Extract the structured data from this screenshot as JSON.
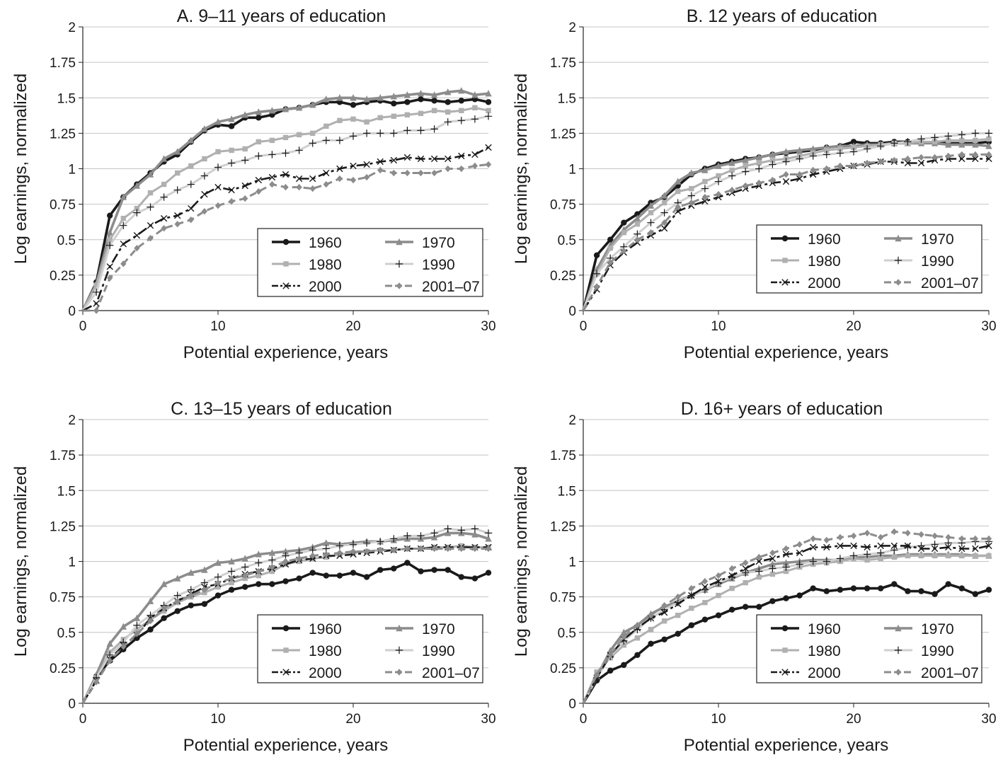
{
  "chart_data": [
    {
      "type": "line",
      "title": "A. 9–11 years of education",
      "xlabel": "Potential experience, years",
      "ylabel": "Log earnings, normalized",
      "xlim": [
        0,
        30
      ],
      "ylim": [
        0,
        2
      ],
      "xticks": [
        "0",
        "10",
        "20",
        "30"
      ],
      "yticks": [
        "0",
        "0.25",
        "0.5",
        "0.75",
        "1",
        "1.25",
        "1.5",
        "1.75",
        "2"
      ],
      "grid": "horizontal",
      "legend_position": "bottom-right",
      "x": [
        0,
        1,
        2,
        3,
        4,
        5,
        6,
        7,
        8,
        9,
        10,
        11,
        12,
        13,
        14,
        15,
        16,
        17,
        18,
        19,
        20,
        21,
        22,
        23,
        24,
        25,
        26,
        27,
        28,
        29,
        30
      ],
      "series": [
        {
          "name": "1960",
          "values": [
            0,
            0.2,
            0.67,
            0.8,
            0.89,
            0.97,
            1.05,
            1.1,
            1.19,
            1.27,
            1.31,
            1.3,
            1.36,
            1.36,
            1.38,
            1.42,
            1.43,
            1.45,
            1.47,
            1.47,
            1.45,
            1.47,
            1.48,
            1.46,
            1.47,
            1.49,
            1.48,
            1.47,
            1.48,
            1.49,
            1.47
          ]
        },
        {
          "name": "1970",
          "values": [
            0,
            0.19,
            0.55,
            0.8,
            0.88,
            0.96,
            1.07,
            1.12,
            1.2,
            1.28,
            1.33,
            1.35,
            1.38,
            1.4,
            1.41,
            1.42,
            1.43,
            1.45,
            1.49,
            1.5,
            1.5,
            1.49,
            1.5,
            1.51,
            1.52,
            1.53,
            1.52,
            1.54,
            1.55,
            1.52,
            1.53
          ]
        },
        {
          "name": "1980",
          "values": [
            0,
            0.18,
            0.5,
            0.65,
            0.72,
            0.83,
            0.89,
            0.97,
            1.02,
            1.07,
            1.12,
            1.13,
            1.14,
            1.19,
            1.2,
            1.22,
            1.24,
            1.25,
            1.3,
            1.34,
            1.35,
            1.33,
            1.36,
            1.37,
            1.38,
            1.39,
            1.41,
            1.4,
            1.41,
            1.43,
            1.41
          ]
        },
        {
          "name": "1990",
          "values": [
            0,
            0.13,
            0.46,
            0.6,
            0.69,
            0.73,
            0.8,
            0.85,
            0.89,
            0.95,
            1.01,
            1.04,
            1.06,
            1.09,
            1.1,
            1.11,
            1.13,
            1.18,
            1.2,
            1.2,
            1.23,
            1.25,
            1.25,
            1.25,
            1.27,
            1.27,
            1.28,
            1.33,
            1.34,
            1.35,
            1.37
          ]
        },
        {
          "name": "2000",
          "values": [
            0,
            0.05,
            0.31,
            0.47,
            0.53,
            0.6,
            0.65,
            0.67,
            0.72,
            0.82,
            0.87,
            0.85,
            0.88,
            0.92,
            0.94,
            0.96,
            0.93,
            0.93,
            0.97,
            1.0,
            1.02,
            1.03,
            1.05,
            1.06,
            1.08,
            1.07,
            1.07,
            1.07,
            1.09,
            1.1,
            1.15
          ]
        },
        {
          "name": "2001–07",
          "values": [
            0,
            0.0,
            0.23,
            0.33,
            0.44,
            0.51,
            0.58,
            0.61,
            0.64,
            0.7,
            0.74,
            0.77,
            0.79,
            0.84,
            0.89,
            0.87,
            0.87,
            0.86,
            0.89,
            0.93,
            0.92,
            0.94,
            0.99,
            0.97,
            0.97,
            0.97,
            0.97,
            1.0,
            1.0,
            1.02,
            1.03
          ]
        }
      ]
    },
    {
      "type": "line",
      "title": "B. 12 years of education",
      "xlabel": "Potential experience, years",
      "ylabel": "Log earnings, normalized",
      "xlim": [
        0,
        30
      ],
      "ylim": [
        0,
        2
      ],
      "xticks": [
        "0",
        "10",
        "20",
        "30"
      ],
      "yticks": [
        "0",
        "0.25",
        "0.5",
        "0.75",
        "1",
        "1.25",
        "1.5",
        "1.75",
        "2"
      ],
      "grid": "horizontal",
      "legend_position": "bottom-right",
      "x": [
        0,
        1,
        2,
        3,
        4,
        5,
        6,
        7,
        8,
        9,
        10,
        11,
        12,
        13,
        14,
        15,
        16,
        17,
        18,
        19,
        20,
        21,
        22,
        23,
        24,
        25,
        26,
        27,
        28,
        29,
        30
      ],
      "series": [
        {
          "name": "1960",
          "values": [
            0,
            0.39,
            0.5,
            0.62,
            0.68,
            0.76,
            0.8,
            0.88,
            0.96,
            1.0,
            1.03,
            1.05,
            1.07,
            1.08,
            1.1,
            1.11,
            1.12,
            1.13,
            1.15,
            1.16,
            1.19,
            1.18,
            1.18,
            1.19,
            1.19,
            1.18,
            1.19,
            1.18,
            1.18,
            1.18,
            1.19
          ]
        },
        {
          "name": "1970",
          "values": [
            0,
            0.29,
            0.46,
            0.57,
            0.65,
            0.74,
            0.81,
            0.91,
            0.97,
            0.99,
            1.02,
            1.04,
            1.06,
            1.08,
            1.1,
            1.12,
            1.13,
            1.14,
            1.15,
            1.16,
            1.16,
            1.17,
            1.17,
            1.18,
            1.18,
            1.18,
            1.18,
            1.17,
            1.17,
            1.17,
            1.16
          ]
        },
        {
          "name": "1980",
          "values": [
            0,
            0.26,
            0.44,
            0.55,
            0.61,
            0.69,
            0.76,
            0.84,
            0.86,
            0.91,
            0.95,
            0.99,
            1.02,
            1.04,
            1.06,
            1.07,
            1.09,
            1.11,
            1.13,
            1.14,
            1.15,
            1.16,
            1.17,
            1.18,
            1.18,
            1.19,
            1.19,
            1.2,
            1.2,
            1.2,
            1.21
          ]
        },
        {
          "name": "1990",
          "values": [
            0,
            0.26,
            0.37,
            0.45,
            0.54,
            0.62,
            0.69,
            0.76,
            0.81,
            0.86,
            0.91,
            0.95,
            0.98,
            1.0,
            1.03,
            1.05,
            1.07,
            1.09,
            1.1,
            1.11,
            1.12,
            1.14,
            1.16,
            1.18,
            1.19,
            1.21,
            1.22,
            1.23,
            1.24,
            1.25,
            1.25
          ]
        },
        {
          "name": "2000",
          "values": [
            0,
            0.15,
            0.32,
            0.41,
            0.48,
            0.53,
            0.58,
            0.7,
            0.74,
            0.77,
            0.8,
            0.83,
            0.86,
            0.88,
            0.9,
            0.91,
            0.93,
            0.96,
            0.98,
            1.0,
            1.02,
            1.03,
            1.05,
            1.05,
            1.04,
            1.04,
            1.06,
            1.07,
            1.07,
            1.07,
            1.07
          ]
        },
        {
          "name": "2001–07",
          "values": [
            0,
            0.17,
            0.34,
            0.42,
            0.5,
            0.55,
            0.62,
            0.73,
            0.76,
            0.8,
            0.82,
            0.85,
            0.88,
            0.9,
            0.92,
            0.96,
            0.96,
            0.99,
            1.0,
            1.02,
            1.02,
            1.04,
            1.05,
            1.06,
            1.07,
            1.08,
            1.08,
            1.09,
            1.1,
            1.1,
            1.1
          ]
        }
      ]
    },
    {
      "type": "line",
      "title": "C. 13–15 years of education",
      "xlabel": "Potential experience, years",
      "ylabel": "Log earnings, normalized",
      "xlim": [
        0,
        30
      ],
      "ylim": [
        0,
        2
      ],
      "xticks": [
        "0",
        "10",
        "20",
        "30"
      ],
      "yticks": [
        "0",
        "0.25",
        "0.5",
        "0.75",
        "1",
        "1.25",
        "1.5",
        "1.75",
        "2"
      ],
      "grid": "horizontal",
      "legend_position": "bottom-right",
      "x": [
        0,
        1,
        2,
        3,
        4,
        5,
        6,
        7,
        8,
        9,
        10,
        11,
        12,
        13,
        14,
        15,
        16,
        17,
        18,
        19,
        20,
        21,
        22,
        23,
        24,
        25,
        26,
        27,
        28,
        29,
        30
      ],
      "series": [
        {
          "name": "1960",
          "values": [
            0,
            0.19,
            0.3,
            0.38,
            0.46,
            0.52,
            0.6,
            0.65,
            0.69,
            0.7,
            0.76,
            0.8,
            0.82,
            0.84,
            0.84,
            0.86,
            0.88,
            0.92,
            0.9,
            0.9,
            0.92,
            0.89,
            0.94,
            0.95,
            0.99,
            0.93,
            0.94,
            0.94,
            0.89,
            0.88,
            0.92
          ]
        },
        {
          "name": "1970",
          "values": [
            0,
            0.2,
            0.42,
            0.54,
            0.6,
            0.72,
            0.84,
            0.88,
            0.92,
            0.94,
            0.99,
            1.0,
            1.02,
            1.05,
            1.06,
            1.07,
            1.08,
            1.1,
            1.13,
            1.12,
            1.13,
            1.14,
            1.14,
            1.15,
            1.16,
            1.16,
            1.17,
            1.2,
            1.2,
            1.19,
            1.16
          ]
        },
        {
          "name": "1980",
          "values": [
            0,
            0.18,
            0.36,
            0.45,
            0.52,
            0.59,
            0.65,
            0.71,
            0.75,
            0.78,
            0.82,
            0.85,
            0.88,
            0.9,
            0.93,
            0.98,
            1.0,
            1.02,
            1.03,
            1.05,
            1.06,
            1.07,
            1.08,
            1.08,
            1.09,
            1.09,
            1.1,
            1.1,
            1.11,
            1.1,
            1.1
          ]
        },
        {
          "name": "1990",
          "values": [
            0,
            0.18,
            0.34,
            0.43,
            0.55,
            0.62,
            0.69,
            0.76,
            0.8,
            0.85,
            0.89,
            0.93,
            0.96,
            0.99,
            1.01,
            1.04,
            1.06,
            1.08,
            1.09,
            1.11,
            1.12,
            1.13,
            1.14,
            1.16,
            1.18,
            1.18,
            1.2,
            1.23,
            1.22,
            1.23,
            1.2
          ]
        },
        {
          "name": "2000",
          "values": [
            0,
            0.16,
            0.31,
            0.41,
            0.48,
            0.6,
            0.67,
            0.72,
            0.77,
            0.82,
            0.84,
            0.88,
            0.91,
            0.93,
            0.95,
            0.98,
            1.01,
            1.02,
            1.04,
            1.04,
            1.05,
            1.06,
            1.07,
            1.08,
            1.09,
            1.09,
            1.1,
            1.1,
            1.1,
            1.1,
            1.1
          ]
        },
        {
          "name": "2001–07",
          "values": [
            0,
            0.15,
            0.3,
            0.4,
            0.49,
            0.58,
            0.67,
            0.72,
            0.76,
            0.8,
            0.85,
            0.88,
            0.9,
            0.93,
            0.96,
            1.0,
            1.02,
            1.04,
            1.05,
            1.06,
            1.07,
            1.07,
            1.08,
            1.08,
            1.09,
            1.09,
            1.09,
            1.09,
            1.09,
            1.09,
            1.09
          ]
        }
      ]
    },
    {
      "type": "line",
      "title": "D. 16+ years of education",
      "xlabel": "Potential experience, years",
      "ylabel": "Log earnings, normalized",
      "xlim": [
        0,
        30
      ],
      "ylim": [
        0,
        2
      ],
      "xticks": [
        "0",
        "10",
        "20",
        "30"
      ],
      "yticks": [
        "0",
        "0.25",
        "0.5",
        "0.75",
        "1",
        "1.25",
        "1.5",
        "1.75",
        "2"
      ],
      "grid": "horizontal",
      "legend_position": "bottom-right",
      "x": [
        0,
        1,
        2,
        3,
        4,
        5,
        6,
        7,
        8,
        9,
        10,
        11,
        12,
        13,
        14,
        15,
        16,
        17,
        18,
        19,
        20,
        21,
        22,
        23,
        24,
        25,
        26,
        27,
        28,
        29,
        30
      ],
      "series": [
        {
          "name": "1960",
          "values": [
            0,
            0.16,
            0.23,
            0.27,
            0.34,
            0.42,
            0.45,
            0.49,
            0.55,
            0.59,
            0.62,
            0.66,
            0.68,
            0.68,
            0.72,
            0.74,
            0.76,
            0.81,
            0.79,
            0.8,
            0.81,
            0.81,
            0.81,
            0.84,
            0.79,
            0.79,
            0.77,
            0.84,
            0.81,
            0.77,
            0.8
          ]
        },
        {
          "name": "1970",
          "values": [
            0,
            0.19,
            0.37,
            0.5,
            0.55,
            0.63,
            0.68,
            0.72,
            0.76,
            0.8,
            0.84,
            0.88,
            0.92,
            0.95,
            0.98,
            0.99,
            1.0,
            1.01,
            1.01,
            1.01,
            1.03,
            1.03,
            1.04,
            1.04,
            1.05,
            1.05,
            1.05,
            1.05,
            1.05,
            1.04,
            1.04
          ]
        },
        {
          "name": "1980",
          "values": [
            0,
            0.22,
            0.32,
            0.41,
            0.46,
            0.52,
            0.58,
            0.62,
            0.67,
            0.71,
            0.76,
            0.81,
            0.85,
            0.89,
            0.91,
            0.93,
            0.96,
            0.98,
            0.99,
            1.0,
            1.02,
            1.01,
            1.02,
            1.03,
            1.04,
            1.04,
            1.04,
            1.04,
            1.04,
            1.04,
            1.04
          ]
        },
        {
          "name": "1990",
          "values": [
            0,
            0.18,
            0.33,
            0.44,
            0.52,
            0.6,
            0.66,
            0.71,
            0.76,
            0.8,
            0.85,
            0.89,
            0.92,
            0.93,
            0.95,
            0.96,
            0.98,
            1.0,
            1.0,
            1.02,
            1.04,
            1.05,
            1.06,
            1.08,
            1.1,
            1.11,
            1.12,
            1.13,
            1.13,
            1.14,
            1.14
          ]
        },
        {
          "name": "2000",
          "values": [
            0,
            0.18,
            0.34,
            0.45,
            0.53,
            0.6,
            0.64,
            0.7,
            0.76,
            0.82,
            0.86,
            0.9,
            0.95,
            1.0,
            1.02,
            1.05,
            1.06,
            1.1,
            1.1,
            1.11,
            1.11,
            1.1,
            1.11,
            1.11,
            1.11,
            1.09,
            1.09,
            1.1,
            1.09,
            1.09,
            1.11
          ]
        },
        {
          "name": "2001–07",
          "values": [
            0,
            0.2,
            0.34,
            0.47,
            0.55,
            0.62,
            0.69,
            0.75,
            0.81,
            0.86,
            0.9,
            0.95,
            0.99,
            1.03,
            1.06,
            1.09,
            1.12,
            1.16,
            1.15,
            1.17,
            1.18,
            1.2,
            1.17,
            1.21,
            1.2,
            1.19,
            1.18,
            1.17,
            1.16,
            1.16,
            1.16
          ]
        }
      ]
    }
  ],
  "series_styles": [
    {
      "color": "#1a1a1a",
      "width": 3.6,
      "dash": "",
      "marker": "circle"
    },
    {
      "color": "#8c8c8c",
      "width": 3.6,
      "dash": "",
      "marker": "triangle"
    },
    {
      "color": "#b0b0b0",
      "width": 3.0,
      "dash": "",
      "marker": "square"
    },
    {
      "color": "#cfcfcf",
      "width": 3.0,
      "dash": "",
      "marker": "plus"
    },
    {
      "color": "#1a1a1a",
      "width": 2.6,
      "dash": "14 5 4 5",
      "marker": "x"
    },
    {
      "color": "#8c8c8c",
      "width": 3.0,
      "dash": "10 6",
      "marker": "diamond"
    }
  ]
}
